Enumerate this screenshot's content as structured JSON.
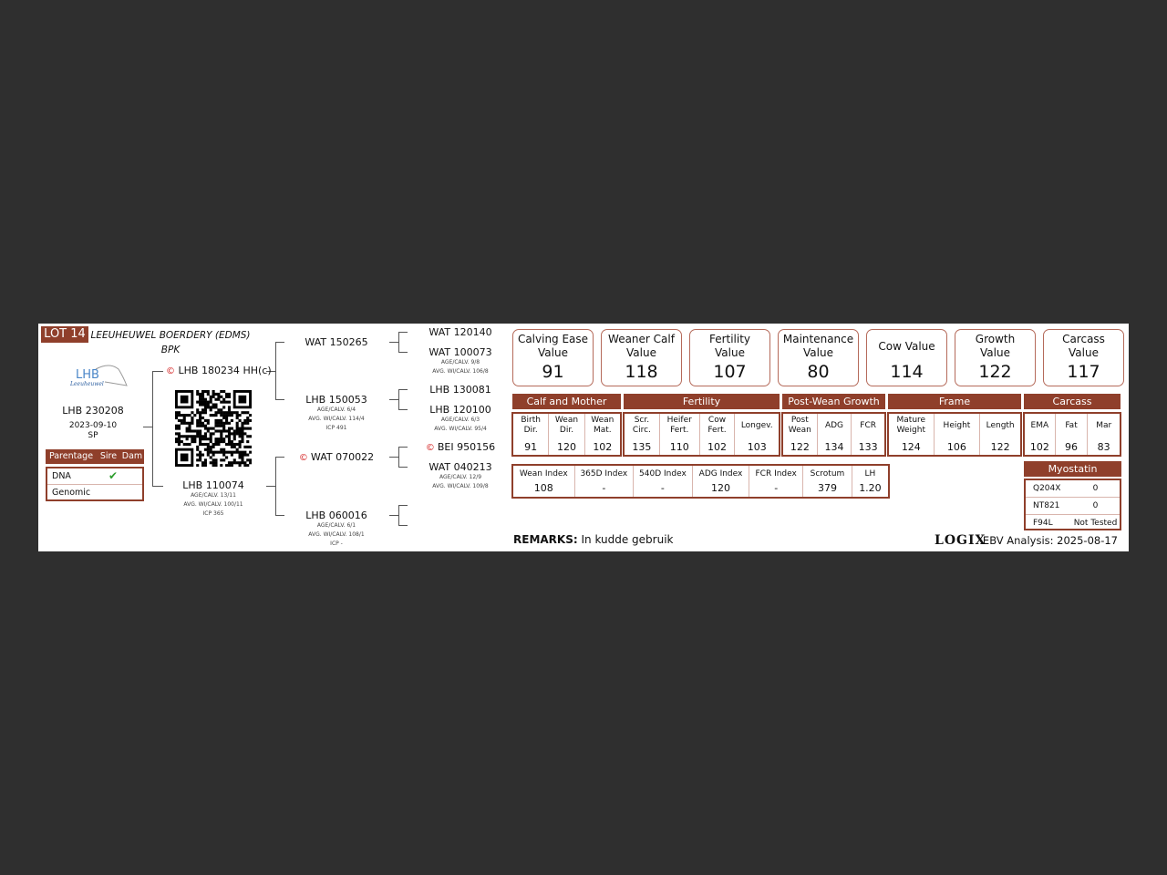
{
  "lot": "LOT 14",
  "breeder": {
    "name": "LEEUHEUWEL BOERDERY (EDMS)",
    "suffix": "BPK"
  },
  "logo": {
    "text": "LHB",
    "subtext": "Leeuheuwel"
  },
  "animal": {
    "id": "LHB 230208",
    "birth_date": "2023-09-10",
    "type": "SP"
  },
  "parentage": {
    "headers": [
      "Parentage",
      "Sire",
      "Dam"
    ],
    "rows": [
      {
        "label": "DNA",
        "sire": "✔",
        "dam": ""
      },
      {
        "label": "Genomic",
        "sire": "",
        "dam": ""
      }
    ]
  },
  "pedigree": {
    "sire": {
      "id": "LHB 180234",
      "suffix": "HH(c)",
      "icon": "genomic-tested-icon"
    },
    "dam": {
      "id": "LHB 110074",
      "age_calv": "AGE/CALV. 13/11",
      "avg_wcalv": "AVG. WI/CALV. 100/11",
      "icp": "ICP 365"
    },
    "ss": {
      "id": "WAT 150265"
    },
    "sd": {
      "id": "LHB 150053",
      "age_calv": "AGE/CALV. 6/4",
      "avg_wcalv": "AVG. WI/CALV. 114/4",
      "icp": "ICP 491"
    },
    "ds": {
      "id": "WAT 070022",
      "icon": "genomic-tested-icon"
    },
    "dd": {
      "id": "LHB 060016",
      "age_calv": "AGE/CALV. 6/1",
      "avg_wcalv": "AVG. WI/CALV. 108/1",
      "icp": "ICP -"
    },
    "sss": {
      "id": "WAT 120140"
    },
    "ssd": {
      "id": "WAT 100073",
      "age_calv": "AGE/CALV. 9/8",
      "avg_wcalv": "AVG. WI/CALV. 106/8"
    },
    "sds": {
      "id": "LHB 130081"
    },
    "sdd": {
      "id": "LHB 120100",
      "age_calv": "AGE/CALV. 6/3",
      "avg_wcalv": "AVG. WI/CALV. 95/4"
    },
    "dss": {
      "id": "BEI 950156",
      "icon": "genomic-tested-icon"
    },
    "dsd": {
      "id": "WAT 040213",
      "age_calv": "AGE/CALV. 12/9",
      "avg_wcalv": "AVG. WI/CALV. 109/8"
    }
  },
  "index_values": [
    {
      "label": "Calving Ease Value",
      "value": "91"
    },
    {
      "label": "Weaner Calf Value",
      "value": "118"
    },
    {
      "label": "Fertility Value",
      "value": "107"
    },
    {
      "label": "Maintenance Value",
      "value": "80"
    },
    {
      "label": "Cow Value",
      "value": "114"
    },
    {
      "label": "Growth Value",
      "value": "122"
    },
    {
      "label": "Carcass Value",
      "value": "117"
    }
  ],
  "trait_groups": [
    {
      "name": "Calf and Mother",
      "traits": [
        {
          "label": "Birth Dir.",
          "value": "91"
        },
        {
          "label": "Wean Dir.",
          "value": "120"
        },
        {
          "label": "Wean Mat.",
          "value": "102"
        }
      ]
    },
    {
      "name": "Fertility",
      "traits": [
        {
          "label": "Scr. Circ.",
          "value": "135"
        },
        {
          "label": "Heifer Fert.",
          "value": "110"
        },
        {
          "label": "Cow Fert.",
          "value": "102"
        },
        {
          "label": "Longev.",
          "value": "103"
        }
      ]
    },
    {
      "name": "Post-Wean Growth",
      "traits": [
        {
          "label": "Post Wean",
          "value": "122"
        },
        {
          "label": "ADG",
          "value": "134"
        },
        {
          "label": "FCR",
          "value": "133"
        }
      ]
    },
    {
      "name": "Frame",
      "traits": [
        {
          "label": "Mature Weight",
          "value": "124"
        },
        {
          "label": "Height",
          "value": "106"
        },
        {
          "label": "Length",
          "value": "122"
        }
      ]
    },
    {
      "name": "Carcass",
      "traits": [
        {
          "label": "EMA",
          "value": "102"
        },
        {
          "label": "Fat",
          "value": "96"
        },
        {
          "label": "Mar",
          "value": "83"
        }
      ]
    }
  ],
  "indexes": [
    {
      "label": "Wean Index",
      "value": "108"
    },
    {
      "label": "365D Index",
      "value": "-"
    },
    {
      "label": "540D Index",
      "value": "-"
    },
    {
      "label": "ADG Index",
      "value": "120"
    },
    {
      "label": "FCR Index",
      "value": "-"
    },
    {
      "label": "Scrotum",
      "value": "379"
    },
    {
      "label": "LH",
      "value": "1.20"
    }
  ],
  "myostatin": {
    "title": "Myostatin",
    "rows": [
      {
        "gene": "Q204X",
        "value": "0"
      },
      {
        "gene": "NT821",
        "value": "0"
      },
      {
        "gene": "F94L",
        "value": "Not Tested"
      }
    ]
  },
  "remarks": {
    "label": "REMARKS:",
    "text": "In kudde gebruik"
  },
  "footer": {
    "brand": "LOGIX",
    "analysis": "EBV Analysis: 2025-08-17"
  },
  "colors": {
    "accent": "#8f3f2b",
    "check": "#2e9e2e",
    "genomic_icon": "#d42020"
  }
}
